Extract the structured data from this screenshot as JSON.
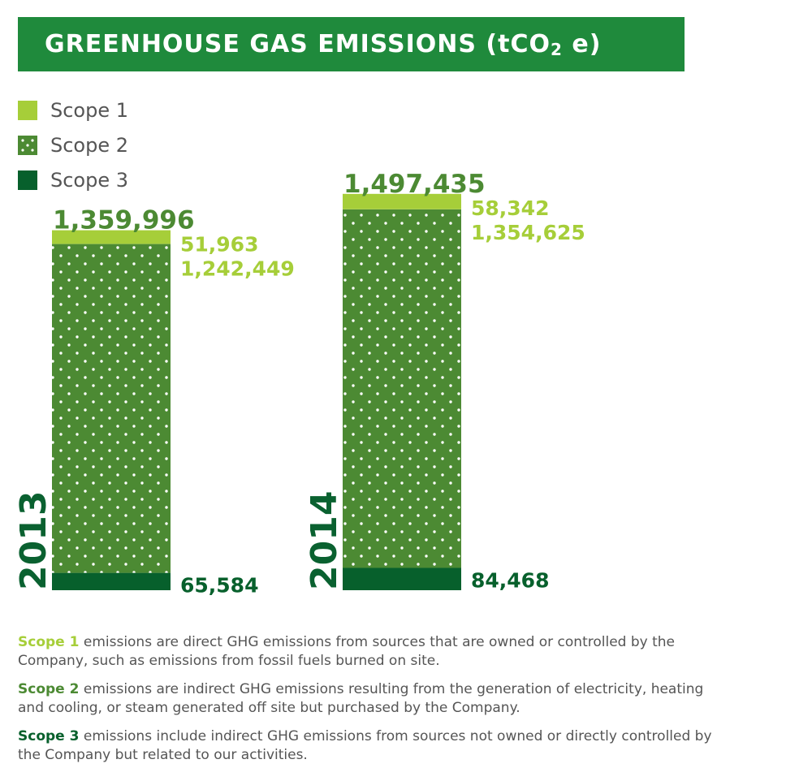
{
  "header": {
    "title_main": "GREENHOUSE GAS EMISSIONS (tCO",
    "title_sub": "2",
    "title_end": " e)"
  },
  "colors": {
    "banner": "#1f8a3c",
    "scope1": "#a6ce39",
    "scope2": "#4c8a33",
    "scope3": "#07602c",
    "year": "#0a6130"
  },
  "legend": [
    {
      "label": "Scope 1",
      "color": "#a6ce39",
      "pattern": "solid"
    },
    {
      "label": "Scope 2",
      "color": "#4c8a33",
      "pattern": "dots"
    },
    {
      "label": "Scope 3",
      "color": "#07602c",
      "pattern": "solid"
    }
  ],
  "chart_data": {
    "type": "bar",
    "stacked": true,
    "categories": [
      "2013",
      "2014"
    ],
    "series": [
      {
        "name": "Scope 3",
        "values": [
          65584,
          84468
        ],
        "labels": [
          "65,584",
          "84,468"
        ]
      },
      {
        "name": "Scope 2",
        "values": [
          1242449,
          1354625
        ],
        "labels": [
          "1,242,449",
          "1,354,625"
        ]
      },
      {
        "name": "Scope 1",
        "values": [
          51963,
          58342
        ],
        "labels": [
          "51,963",
          "58,342"
        ]
      }
    ],
    "totals": [
      1359996,
      1497435
    ],
    "total_labels": [
      "1,359,996",
      "1,497,435"
    ],
    "legend": "top-left",
    "grid": false
  },
  "notes": [
    {
      "term": "Scope 1",
      "text": " emissions are direct GHG emissions from sources that are owned or controlled by the Company, such as emissions from fossil fuels burned on site."
    },
    {
      "term": "Scope 2",
      "text": " emissions are indirect GHG emissions resulting from the generation of electricity, heating and cooling, or steam generated off site but purchased by the Company."
    },
    {
      "term": "Scope 3",
      "text": " emissions include indirect GHG emissions from sources not owned or directly controlled by the Company but related to our activities."
    }
  ]
}
